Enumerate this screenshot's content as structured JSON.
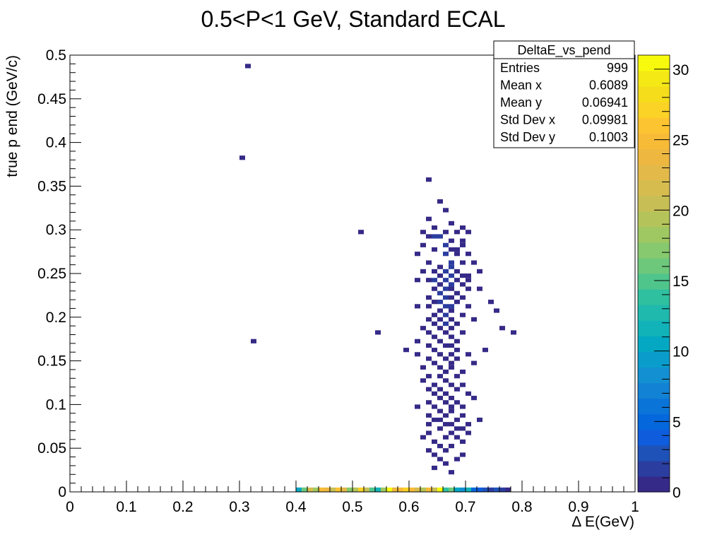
{
  "chart_data": {
    "type": "heatmap",
    "title": "0.5<P<1 GeV, Standard ECAL",
    "xlabel": "Δ E(GeV)",
    "ylabel": "true p end (GeV/c)",
    "xlim": [
      0,
      1
    ],
    "ylim": [
      0,
      0.5
    ],
    "x_ticks": [
      "0",
      "0.1",
      "0.2",
      "0.3",
      "0.4",
      "0.5",
      "0.6",
      "0.7",
      "0.8",
      "0.9",
      "1"
    ],
    "y_ticks": [
      "0",
      "0.05",
      "0.1",
      "0.15",
      "0.2",
      "0.25",
      "0.3",
      "0.35",
      "0.4",
      "0.45",
      "0.5"
    ],
    "z_ticks": [
      "0",
      "5",
      "10",
      "15",
      "20",
      "25",
      "30"
    ],
    "zlim": [
      0,
      31
    ],
    "bin_width": [
      0.01,
      0.005
    ],
    "palette": [
      "#352a87",
      "#2b3d9f",
      "#1f52b8",
      "#0f5cdd",
      "#0567dc",
      "#0a74d8",
      "#1282d4",
      "#1390d1",
      "#0a9dcc",
      "#05a8c3",
      "#11b2b8",
      "#1fb9ae",
      "#2fc09f",
      "#4fc58c",
      "#6dc87c",
      "#87c96e",
      "#9fc862",
      "#b4c45a",
      "#c7bf55",
      "#d6bc4f",
      "#e3b949",
      "#eeb840",
      "#f8bb38",
      "#fdc431",
      "#fbd226",
      "#f6dd1c",
      "#f4e815",
      "#f8fa0d"
    ],
    "stats": {
      "name": "DeltaE_vs_pend",
      "rows": [
        {
          "label": "Entries",
          "value": "999"
        },
        {
          "label": "Mean x",
          "value": "0.6089"
        },
        {
          "label": "Mean y",
          "value": "0.06941"
        },
        {
          "label": "Std Dev x",
          "value": "0.09981"
        },
        {
          "label": "Std Dev y",
          "value": "0.1003"
        }
      ]
    },
    "bins": [
      [
        0.405,
        0.0025,
        10
      ],
      [
        0.415,
        0.0025,
        16
      ],
      [
        0.425,
        0.0025,
        22
      ],
      [
        0.435,
        0.0025,
        18
      ],
      [
        0.445,
        0.0025,
        25
      ],
      [
        0.455,
        0.0025,
        24
      ],
      [
        0.465,
        0.0025,
        20
      ],
      [
        0.475,
        0.0025,
        26
      ],
      [
        0.485,
        0.0025,
        23
      ],
      [
        0.495,
        0.0025,
        17
      ],
      [
        0.505,
        0.0025,
        19
      ],
      [
        0.515,
        0.0025,
        27
      ],
      [
        0.525,
        0.0025,
        21
      ],
      [
        0.535,
        0.0025,
        15
      ],
      [
        0.545,
        0.0025,
        12
      ],
      [
        0.555,
        0.0025,
        18
      ],
      [
        0.565,
        0.0025,
        31
      ],
      [
        0.575,
        0.0025,
        24
      ],
      [
        0.585,
        0.0025,
        25
      ],
      [
        0.595,
        0.0025,
        27
      ],
      [
        0.605,
        0.0025,
        25
      ],
      [
        0.615,
        0.0025,
        22
      ],
      [
        0.625,
        0.0025,
        19
      ],
      [
        0.635,
        0.0025,
        25
      ],
      [
        0.645,
        0.0025,
        20
      ],
      [
        0.655,
        0.0025,
        30
      ],
      [
        0.665,
        0.0025,
        14
      ],
      [
        0.675,
        0.0025,
        16
      ],
      [
        0.685,
        0.0025,
        10
      ],
      [
        0.695,
        0.0025,
        8
      ],
      [
        0.705,
        0.0025,
        12
      ],
      [
        0.715,
        0.0025,
        5
      ],
      [
        0.725,
        0.0025,
        4
      ],
      [
        0.735,
        0.0025,
        3
      ],
      [
        0.745,
        0.0025,
        2
      ],
      [
        0.755,
        0.0025,
        3
      ],
      [
        0.765,
        0.0025,
        2
      ],
      [
        0.775,
        0.0025,
        1
      ],
      [
        0.315,
        0.4875,
        1
      ],
      [
        0.305,
        0.3825,
        1
      ],
      [
        0.325,
        0.1725,
        1
      ],
      [
        0.515,
        0.2975,
        1
      ],
      [
        0.545,
        0.1825,
        1
      ],
      [
        0.635,
        0.3575,
        1
      ],
      [
        0.655,
        0.3325,
        1
      ],
      [
        0.665,
        0.3225,
        1
      ],
      [
        0.635,
        0.3125,
        1
      ],
      [
        0.675,
        0.3075,
        1
      ],
      [
        0.645,
        0.3025,
        1
      ],
      [
        0.695,
        0.3025,
        1
      ],
      [
        0.625,
        0.2975,
        1
      ],
      [
        0.665,
        0.2975,
        1
      ],
      [
        0.685,
        0.2975,
        1
      ],
      [
        0.705,
        0.2975,
        1
      ],
      [
        0.635,
        0.2925,
        1
      ],
      [
        0.645,
        0.2925,
        2
      ],
      [
        0.655,
        0.2925,
        2
      ],
      [
        0.675,
        0.2875,
        1
      ],
      [
        0.695,
        0.2875,
        1
      ],
      [
        0.625,
        0.2825,
        1
      ],
      [
        0.665,
        0.2825,
        2
      ],
      [
        0.695,
        0.2825,
        1
      ],
      [
        0.645,
        0.2775,
        1
      ],
      [
        0.675,
        0.2775,
        1
      ],
      [
        0.685,
        0.2775,
        1
      ],
      [
        0.615,
        0.2725,
        1
      ],
      [
        0.665,
        0.2725,
        2
      ],
      [
        0.685,
        0.2725,
        1
      ],
      [
        0.705,
        0.2725,
        1
      ],
      [
        0.635,
        0.2625,
        1
      ],
      [
        0.675,
        0.2625,
        2
      ],
      [
        0.695,
        0.2625,
        1
      ],
      [
        0.715,
        0.2625,
        1
      ],
      [
        0.655,
        0.2575,
        1
      ],
      [
        0.675,
        0.2575,
        2
      ],
      [
        0.625,
        0.2525,
        1
      ],
      [
        0.645,
        0.2525,
        1
      ],
      [
        0.665,
        0.2525,
        2
      ],
      [
        0.685,
        0.2525,
        1
      ],
      [
        0.725,
        0.2525,
        1
      ],
      [
        0.655,
        0.2475,
        1
      ],
      [
        0.675,
        0.2475,
        2
      ],
      [
        0.695,
        0.2475,
        1
      ],
      [
        0.705,
        0.2475,
        1
      ],
      [
        0.615,
        0.2425,
        1
      ],
      [
        0.635,
        0.2425,
        1
      ],
      [
        0.645,
        0.2425,
        2
      ],
      [
        0.665,
        0.2425,
        2
      ],
      [
        0.685,
        0.2425,
        1
      ],
      [
        0.705,
        0.2425,
        1
      ],
      [
        0.655,
        0.2375,
        1
      ],
      [
        0.675,
        0.2375,
        2
      ],
      [
        0.695,
        0.2375,
        1
      ],
      [
        0.645,
        0.2325,
        1
      ],
      [
        0.665,
        0.2325,
        2
      ],
      [
        0.675,
        0.2325,
        1
      ],
      [
        0.705,
        0.2325,
        1
      ],
      [
        0.725,
        0.2325,
        1
      ],
      [
        0.655,
        0.2275,
        2
      ],
      [
        0.685,
        0.2275,
        1
      ],
      [
        0.635,
        0.2225,
        1
      ],
      [
        0.665,
        0.2225,
        2
      ],
      [
        0.675,
        0.2225,
        1
      ],
      [
        0.695,
        0.2225,
        1
      ],
      [
        0.645,
        0.2175,
        1
      ],
      [
        0.655,
        0.2175,
        2
      ],
      [
        0.685,
        0.2175,
        1
      ],
      [
        0.745,
        0.2175,
        1
      ],
      [
        0.615,
        0.2125,
        1
      ],
      [
        0.635,
        0.2125,
        1
      ],
      [
        0.665,
        0.2125,
        2
      ],
      [
        0.675,
        0.2125,
        2
      ],
      [
        0.705,
        0.2125,
        1
      ],
      [
        0.655,
        0.2075,
        1
      ],
      [
        0.675,
        0.2075,
        1
      ],
      [
        0.755,
        0.2075,
        1
      ],
      [
        0.645,
        0.2025,
        1
      ],
      [
        0.665,
        0.2025,
        2
      ],
      [
        0.695,
        0.2025,
        1
      ],
      [
        0.635,
        0.1975,
        1
      ],
      [
        0.655,
        0.1975,
        1
      ],
      [
        0.675,
        0.1975,
        1
      ],
      [
        0.715,
        0.1975,
        1
      ],
      [
        0.645,
        0.1925,
        1
      ],
      [
        0.665,
        0.1925,
        2
      ],
      [
        0.685,
        0.1925,
        1
      ],
      [
        0.625,
        0.1875,
        1
      ],
      [
        0.655,
        0.1875,
        1
      ],
      [
        0.675,
        0.1875,
        1
      ],
      [
        0.765,
        0.1875,
        1
      ],
      [
        0.635,
        0.1825,
        1
      ],
      [
        0.665,
        0.1825,
        1
      ],
      [
        0.695,
        0.1825,
        1
      ],
      [
        0.785,
        0.1825,
        1
      ],
      [
        0.645,
        0.1775,
        1
      ],
      [
        0.675,
        0.1775,
        1
      ],
      [
        0.615,
        0.1725,
        1
      ],
      [
        0.655,
        0.1725,
        1
      ],
      [
        0.685,
        0.1725,
        1
      ],
      [
        0.635,
        0.1675,
        1
      ],
      [
        0.665,
        0.1675,
        1
      ],
      [
        0.675,
        0.1675,
        1
      ],
      [
        0.595,
        0.1625,
        1
      ],
      [
        0.645,
        0.1625,
        1
      ],
      [
        0.685,
        0.1625,
        1
      ],
      [
        0.735,
        0.1625,
        1
      ],
      [
        0.615,
        0.1575,
        1
      ],
      [
        0.655,
        0.1575,
        1
      ],
      [
        0.675,
        0.1575,
        1
      ],
      [
        0.705,
        0.1575,
        1
      ],
      [
        0.635,
        0.1525,
        1
      ],
      [
        0.665,
        0.1525,
        1
      ],
      [
        0.685,
        0.1525,
        1
      ],
      [
        0.645,
        0.1475,
        1
      ],
      [
        0.675,
        0.1475,
        1
      ],
      [
        0.715,
        0.1475,
        1
      ],
      [
        0.625,
        0.1425,
        1
      ],
      [
        0.655,
        0.1425,
        1
      ],
      [
        0.675,
        0.1425,
        1
      ],
      [
        0.665,
        0.1375,
        1
      ],
      [
        0.695,
        0.1375,
        1
      ],
      [
        0.635,
        0.1325,
        1
      ],
      [
        0.655,
        0.1325,
        1
      ],
      [
        0.685,
        0.1325,
        1
      ],
      [
        0.625,
        0.1275,
        1
      ],
      [
        0.665,
        0.1275,
        1
      ],
      [
        0.645,
        0.1225,
        1
      ],
      [
        0.675,
        0.1225,
        1
      ],
      [
        0.695,
        0.1225,
        1
      ],
      [
        0.635,
        0.1175,
        1
      ],
      [
        0.655,
        0.1175,
        1
      ],
      [
        0.685,
        0.1175,
        1
      ],
      [
        0.645,
        0.1125,
        1
      ],
      [
        0.665,
        0.1125,
        1
      ],
      [
        0.705,
        0.1125,
        1
      ],
      [
        0.655,
        0.1075,
        1
      ],
      [
        0.675,
        0.1075,
        1
      ],
      [
        0.715,
        0.1075,
        1
      ],
      [
        0.635,
        0.1025,
        1
      ],
      [
        0.665,
        0.1025,
        1
      ],
      [
        0.685,
        0.1025,
        1
      ],
      [
        0.615,
        0.0975,
        1
      ],
      [
        0.645,
        0.0975,
        1
      ],
      [
        0.675,
        0.0975,
        1
      ],
      [
        0.695,
        0.0975,
        1
      ],
      [
        0.655,
        0.0925,
        1
      ],
      [
        0.675,
        0.0925,
        1
      ],
      [
        0.635,
        0.0875,
        1
      ],
      [
        0.665,
        0.0875,
        1
      ],
      [
        0.695,
        0.0875,
        1
      ],
      [
        0.645,
        0.0825,
        1
      ],
      [
        0.655,
        0.0825,
        1
      ],
      [
        0.685,
        0.0825,
        1
      ],
      [
        0.725,
        0.0825,
        1
      ],
      [
        0.635,
        0.0775,
        1
      ],
      [
        0.665,
        0.0775,
        1
      ],
      [
        0.675,
        0.0775,
        1
      ],
      [
        0.705,
        0.0775,
        1
      ],
      [
        0.655,
        0.0725,
        1
      ],
      [
        0.685,
        0.0725,
        1
      ],
      [
        0.695,
        0.0725,
        1
      ],
      [
        0.635,
        0.0675,
        1
      ],
      [
        0.675,
        0.0675,
        1
      ],
      [
        0.705,
        0.0675,
        1
      ],
      [
        0.625,
        0.0625,
        1
      ],
      [
        0.665,
        0.0625,
        1
      ],
      [
        0.685,
        0.0625,
        1
      ],
      [
        0.645,
        0.0575,
        1
      ],
      [
        0.695,
        0.0575,
        1
      ],
      [
        0.655,
        0.0525,
        1
      ],
      [
        0.675,
        0.0525,
        1
      ],
      [
        0.635,
        0.0475,
        1
      ],
      [
        0.665,
        0.0475,
        1
      ],
      [
        0.645,
        0.0425,
        1
      ],
      [
        0.695,
        0.0425,
        1
      ],
      [
        0.655,
        0.0375,
        1
      ],
      [
        0.685,
        0.0375,
        1
      ],
      [
        0.665,
        0.0325,
        1
      ],
      [
        0.645,
        0.0275,
        1
      ],
      [
        0.675,
        0.0225,
        1
      ]
    ]
  }
}
